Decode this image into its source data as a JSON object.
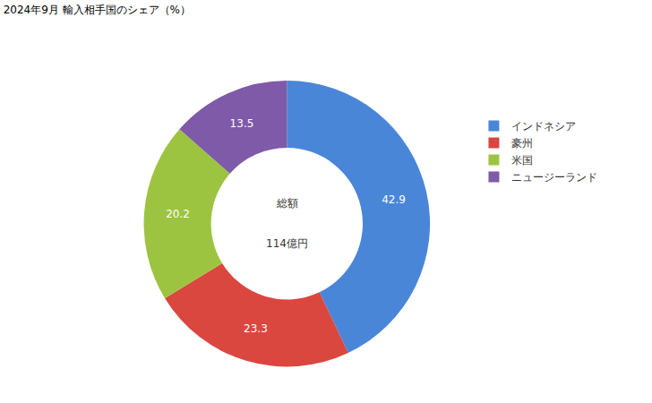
{
  "chart_data": {
    "type": "pie",
    "title": "2024年9月 輸入相手国のシェア（%）",
    "categories": [
      "インドネシア",
      "豪州",
      "米国",
      "ニュージーランド"
    ],
    "values": [
      42.9,
      23.3,
      20.2,
      13.5
    ],
    "colors": [
      "#4a86d8",
      "#d9473f",
      "#9dc440",
      "#7e5aa8"
    ],
    "data_labels": true,
    "legend": "right",
    "annotations": [
      "総額",
      "114億円"
    ]
  }
}
